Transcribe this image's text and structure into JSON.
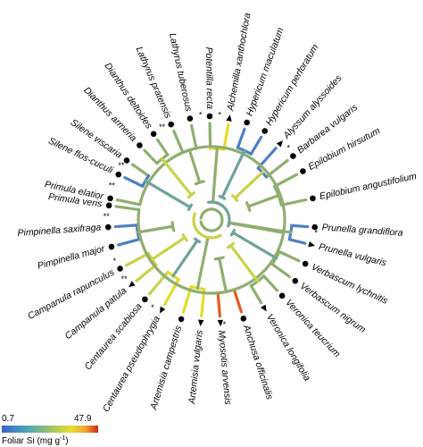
{
  "tree": {
    "tips": [
      {
        "label": "Alchemilla xanthochlora",
        "marker": "triangle"
      },
      {
        "label": "Hypericum maculatum",
        "marker": "dot"
      },
      {
        "label": "Hypericum perforatum",
        "marker": "dot"
      },
      {
        "label": "Alyssum alyssoides",
        "marker": "triangle"
      },
      {
        "label": "Barbarea vulgaris",
        "marker": "dot"
      },
      {
        "label": "Epilobium hirsutum",
        "marker": "dot"
      },
      {
        "label": "Epilobium angustifolium",
        "marker": "dot"
      },
      {
        "label": "Prunella grandiflora",
        "marker": "dot"
      },
      {
        "label": "Prunella vulgaris",
        "marker": "triangle"
      },
      {
        "label": "Verbascum lychnitis",
        "marker": "dot"
      },
      {
        "label": "Verbascum nigrum",
        "marker": "dot"
      },
      {
        "label": "Veronica teucrium",
        "marker": "dot"
      },
      {
        "label": "Veronica longifolia",
        "marker": "triangle"
      },
      {
        "label": "Anchusa officinalis",
        "marker": "dot"
      },
      {
        "label": "Myosotis arvensis",
        "marker": "triangle"
      },
      {
        "label": "Artemisia vulgaris",
        "marker": "triangle"
      },
      {
        "label": "Artemisia campestris",
        "marker": "dot"
      },
      {
        "label": "Centaurea pseudophrygia",
        "marker": "triangle"
      },
      {
        "label": "Centaurea scabiosa",
        "marker": "dot"
      },
      {
        "label": "Campanula patula",
        "marker": "triangle"
      },
      {
        "label": "Campanula rapunculus",
        "marker": "dot"
      },
      {
        "label": "Pimpinella major",
        "marker": "dot"
      },
      {
        "label": "Pimpinella saxifraga",
        "marker": "dot"
      },
      {
        "label": "Primula veris",
        "marker": "dot"
      },
      {
        "label": "Primula elatior",
        "marker": "dot"
      },
      {
        "label": "Silene flos-cuculi",
        "marker": "dot"
      },
      {
        "label": "Silene viscaria",
        "marker": "dot"
      },
      {
        "label": "Dianthus armeria",
        "marker": "dot"
      },
      {
        "label": "Dianthus deltoides",
        "marker": "dot"
      },
      {
        "label": "Lathyrus pratensis",
        "marker": "dot"
      },
      {
        "label": "Lathyrus tuberosus",
        "marker": "dot"
      },
      {
        "label": "Potentilla recta",
        "marker": "dot"
      }
    ],
    "significance_marks": [
      "*",
      "*",
      "*",
      "*",
      "*",
      "**",
      "*",
      "**",
      "**",
      "**",
      "**",
      "*"
    ]
  },
  "scale": {
    "min_label": "0.7",
    "max_label": "47.9",
    "title": "Foliar Si (mg g",
    "title_sup": "-1",
    "title_end": ")",
    "gradient": [
      "#3a62c9",
      "#4aa3b8",
      "#9cc26a",
      "#e8e030",
      "#f0a030",
      "#d42a1c"
    ]
  },
  "colors": {
    "low": "#4f7fc4",
    "mid_low": "#6fa39a",
    "mid": "#8fae6f",
    "mid_high": "#c9d24a",
    "high": "#e4db2a",
    "very_high": "#e85a22"
  }
}
